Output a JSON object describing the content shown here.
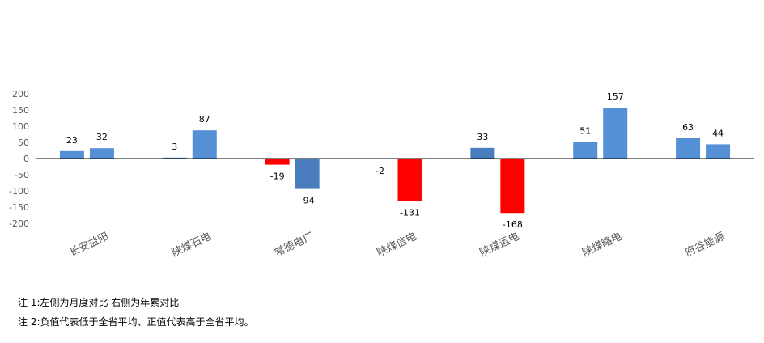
{
  "chart_data": {
    "type": "bar",
    "categories": [
      "长安益阳",
      "陕煤石电",
      "常德电厂",
      "陕煤信电",
      "陕煤运电",
      "陕煤略电",
      "府谷能源"
    ],
    "series": [
      {
        "values": [
          23,
          3,
          -19,
          -2,
          33,
          51,
          63
        ]
      },
      {
        "values": [
          32,
          87,
          -94,
          -131,
          -168,
          157,
          44
        ]
      }
    ],
    "bar_colors": [
      [
        "#5590D6",
        "#5590D6"
      ],
      [
        "#5590D6",
        "#5590D6"
      ],
      [
        "#FF0000",
        "#4A7DBE"
      ],
      [
        "#FF0000",
        "#FF0000"
      ],
      [
        "#4A7DBE",
        "#FF0000"
      ],
      [
        "#5590D6",
        "#5590D6"
      ],
      [
        "#5590D6",
        "#5590D6"
      ]
    ],
    "yticks": [
      200,
      150,
      100,
      50,
      0,
      -50,
      -100,
      -150,
      -200
    ],
    "ylim": [
      -200,
      200
    ],
    "grid": false,
    "legend": "none"
  },
  "notes": {
    "note1": "注 1:左侧为月度对比  右侧为年累对比",
    "note2": "注 2:负值代表低于全省平均、正值代表高于全省平均。"
  }
}
